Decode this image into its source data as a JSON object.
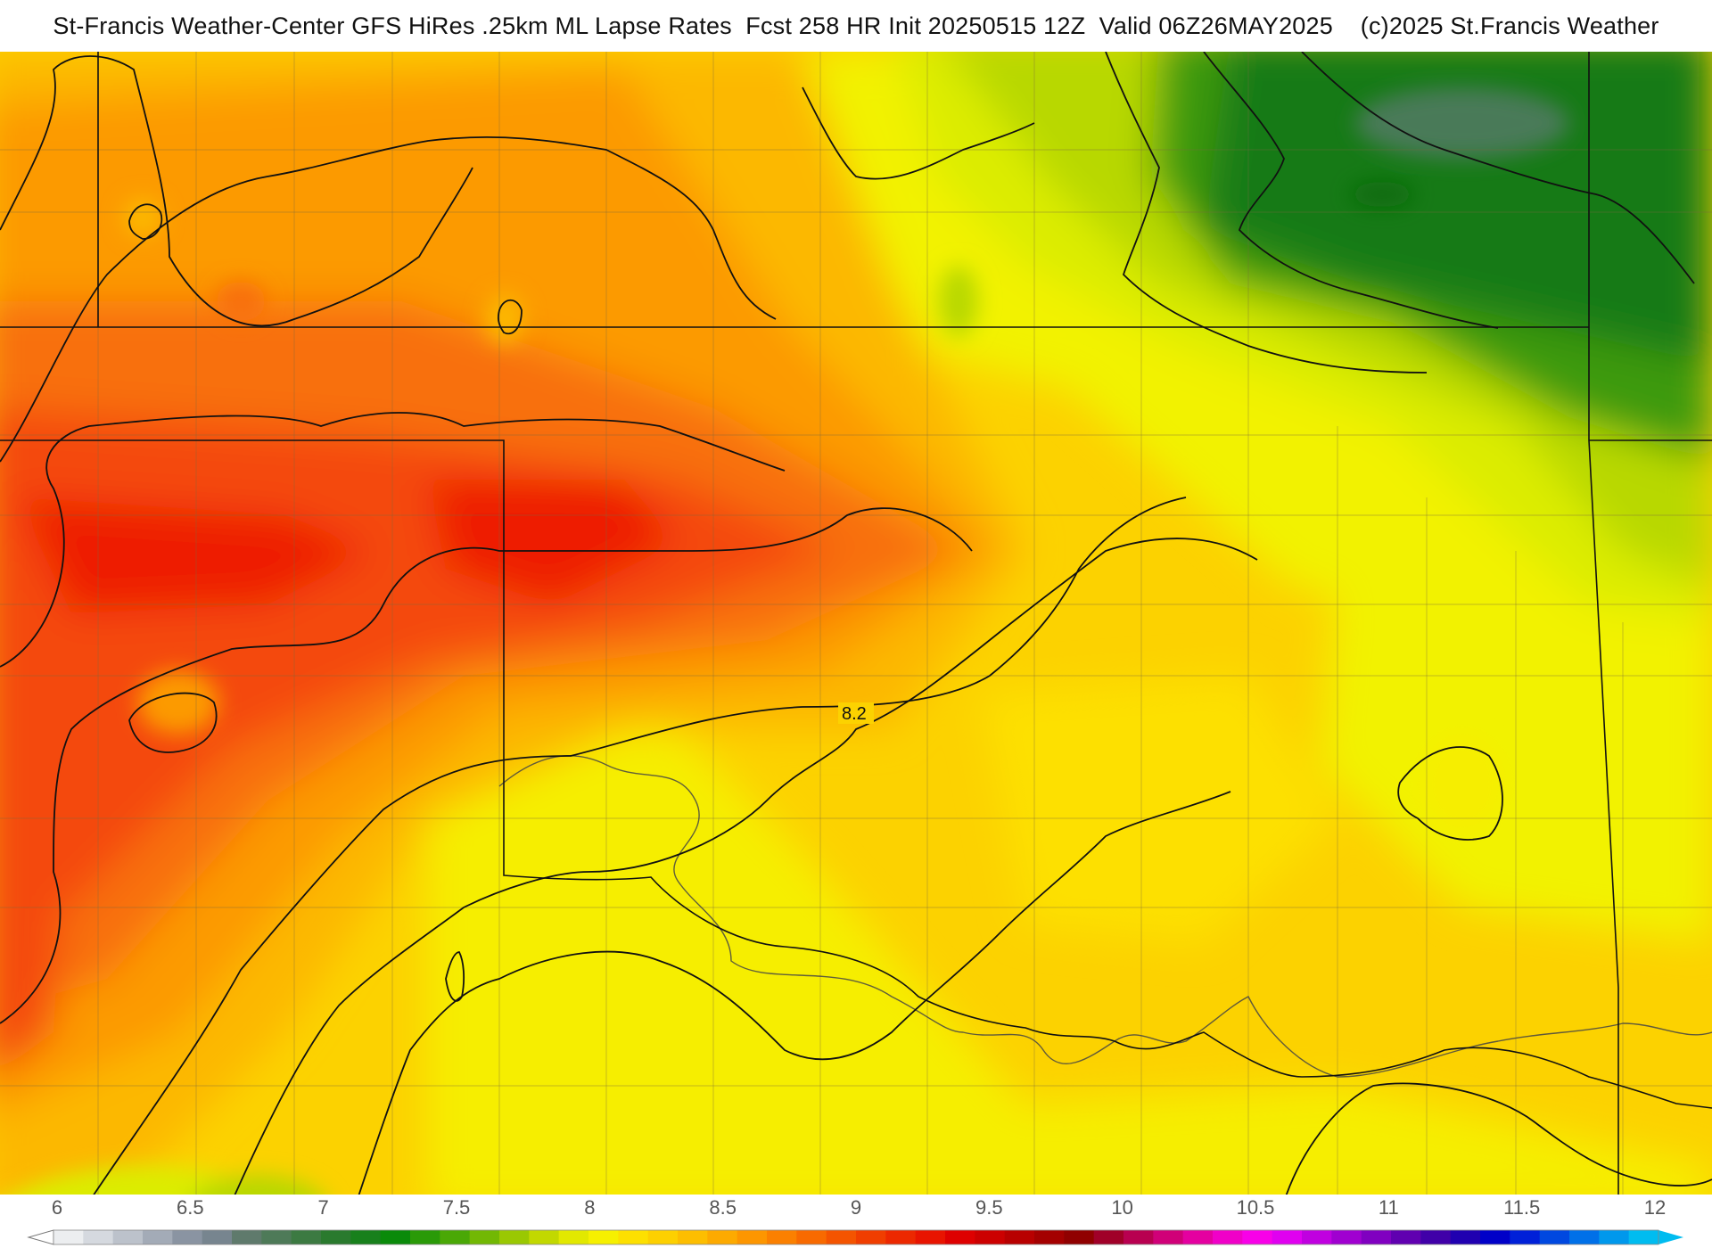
{
  "header": {
    "title": "St-Francis Weather-Center GFS HiRes .25km ML Lapse Rates  Fcst 258 HR Init 20250515 12Z  Valid 06Z26MAY2025    (c)2025 St.Francis Weather"
  },
  "map": {
    "contour_label": "8.2",
    "field_colors": {
      "dark_green": "#147a14",
      "green": "#3e9a10",
      "yellow_green": "#b8d800",
      "lime": "#dcec00",
      "yellow": "#f2f200",
      "light_gold": "#fce400",
      "gold": "#fcd200",
      "amber": "#fcb800",
      "orange": "#fc9a00",
      "deep_orange": "#f87010",
      "red_orange": "#f44a08",
      "red": "#ee1a00"
    },
    "line_colors": {
      "contours": "#111111",
      "state_borders": "#111111",
      "counties": "#7a6a40"
    }
  },
  "legend": {
    "tick_labels": [
      "6",
      "6.5",
      "7",
      "7.5",
      "8",
      "8.5",
      "9",
      "9.5",
      "10",
      "10.5",
      "11",
      "11.5",
      "12"
    ],
    "color_steps": [
      "#eceef0",
      "#d5d9df",
      "#bcc2cb",
      "#a3abb7",
      "#8a94a2",
      "#77858f",
      "#5f7a6c",
      "#4e7a58",
      "#3c7a42",
      "#2a7a2e",
      "#18801c",
      "#0a8a0a",
      "#2a9a08",
      "#4aa806",
      "#72b804",
      "#9ac802",
      "#c2d800",
      "#e2e800",
      "#f6f000",
      "#fde000",
      "#fdd000",
      "#fdbe00",
      "#fdaa00",
      "#fd9600",
      "#fb8000",
      "#f86a00",
      "#f45400",
      "#f03e00",
      "#ec2800",
      "#e81400",
      "#de0000",
      "#cc0000",
      "#b80000",
      "#a40000",
      "#900000",
      "#a00028",
      "#b80050",
      "#d00078",
      "#e400a0",
      "#f000c8",
      "#f800e8",
      "#e000f0",
      "#c000e0",
      "#a000d0",
      "#8000c0",
      "#6000b0",
      "#4000a8",
      "#2000b0",
      "#0000c8",
      "#0020d8",
      "#0048e0",
      "#0070e8",
      "#0098ec",
      "#00bcf0"
    ]
  }
}
